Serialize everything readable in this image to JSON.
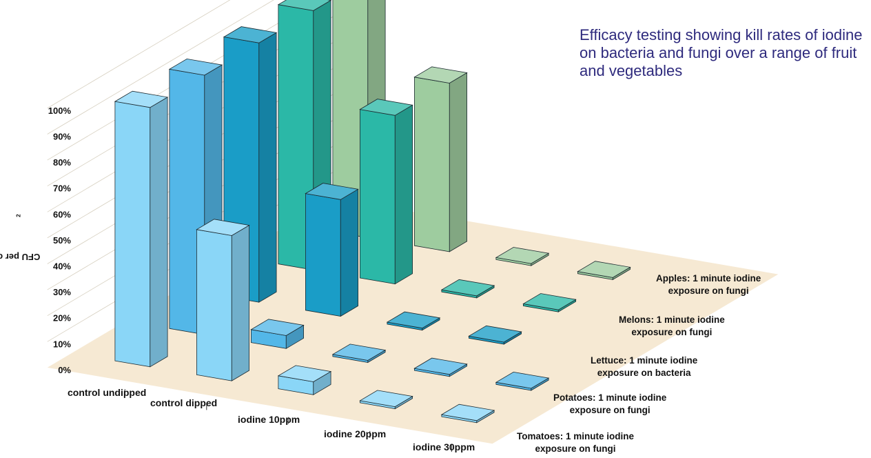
{
  "chart_data": {
    "type": "bar",
    "title": "Efficacy testing showing kill rates of iodine on bacteria and fungi over a range of fruit and vegetables",
    "ylabel": "CFU per cm",
    "ylabel_sup": "2",
    "ylim": [
      0,
      100
    ],
    "yticks": [
      "0%",
      "10%",
      "20%",
      "30%",
      "40%",
      "50%",
      "60%",
      "70%",
      "80%",
      "90%",
      "100%"
    ],
    "categories": [
      "control undipped",
      "control dipped",
      "iodine 10ppm",
      "iodine 20ppm",
      "iodine 30ppm"
    ],
    "series": [
      {
        "name_line1": "Tomatoes: 1 minute iodine",
        "name_line2": "exposure on fungi",
        "color": "#8ad6f7",
        "values": [
          100,
          56,
          5,
          0.3,
          0.3
        ]
      },
      {
        "name_line1": "Potatoes: 1 minute iodine",
        "name_line2": "exposure on fungi",
        "color": "#53b7e8",
        "values": [
          100,
          5,
          0.4,
          0.3,
          0.3
        ]
      },
      {
        "name_line1": "Lettuce: 1 minute iodine",
        "name_line2": "exposure on bacteria",
        "color": "#1a9dc7",
        "values": [
          100,
          45,
          0.4,
          0.3,
          0
        ]
      },
      {
        "name_line1": "Melons: 1 minute iodine",
        "name_line2": "exposure on fungi",
        "color": "#2bb8a7",
        "values": [
          100,
          65,
          0.4,
          0.1,
          0
        ]
      },
      {
        "name_line1": "Apples: 1 minute iodine",
        "name_line2": "exposure on fungi",
        "color": "#9ecc9f",
        "values": [
          100,
          65,
          0.4,
          0.1,
          0
        ]
      }
    ]
  }
}
